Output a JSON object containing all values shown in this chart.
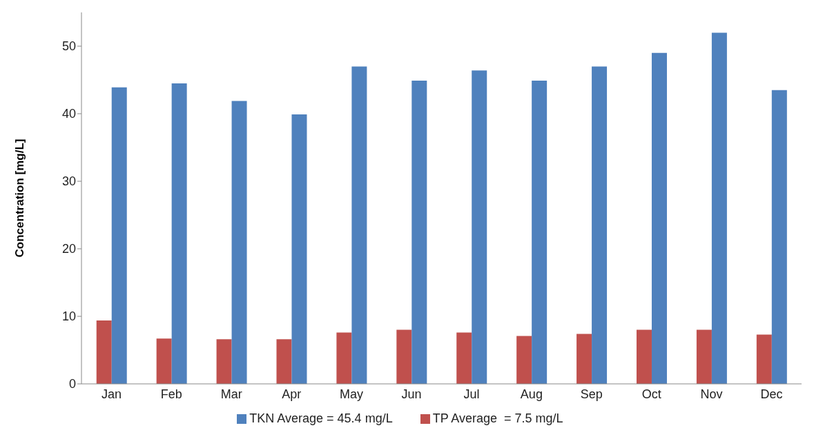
{
  "chart_data": {
    "type": "bar",
    "ylabel": "Concentration [mg/L]",
    "categories": [
      "Jan",
      "Feb",
      "Mar",
      "Apr",
      "May",
      "Jun",
      "Jul",
      "Aug",
      "Sep",
      "Oct",
      "Nov",
      "Dec"
    ],
    "series": [
      {
        "name": "TP Average  = 7.5 mg/L",
        "color": "#c0504d",
        "values": [
          9.4,
          6.7,
          6.6,
          6.6,
          7.6,
          8.0,
          7.6,
          7.1,
          7.4,
          8.0,
          8.0,
          7.3
        ]
      },
      {
        "name": "TKN Average = 45.4 mg/L",
        "color": "#4f81bd",
        "values": [
          43.9,
          44.5,
          41.9,
          39.9,
          47.0,
          44.9,
          46.4,
          44.9,
          47.0,
          49.0,
          52.0,
          43.5
        ]
      }
    ],
    "ylim": [
      0,
      55
    ],
    "yticks": [
      0,
      10,
      20,
      30,
      40,
      50
    ],
    "grid": false,
    "legend": "bottom"
  }
}
